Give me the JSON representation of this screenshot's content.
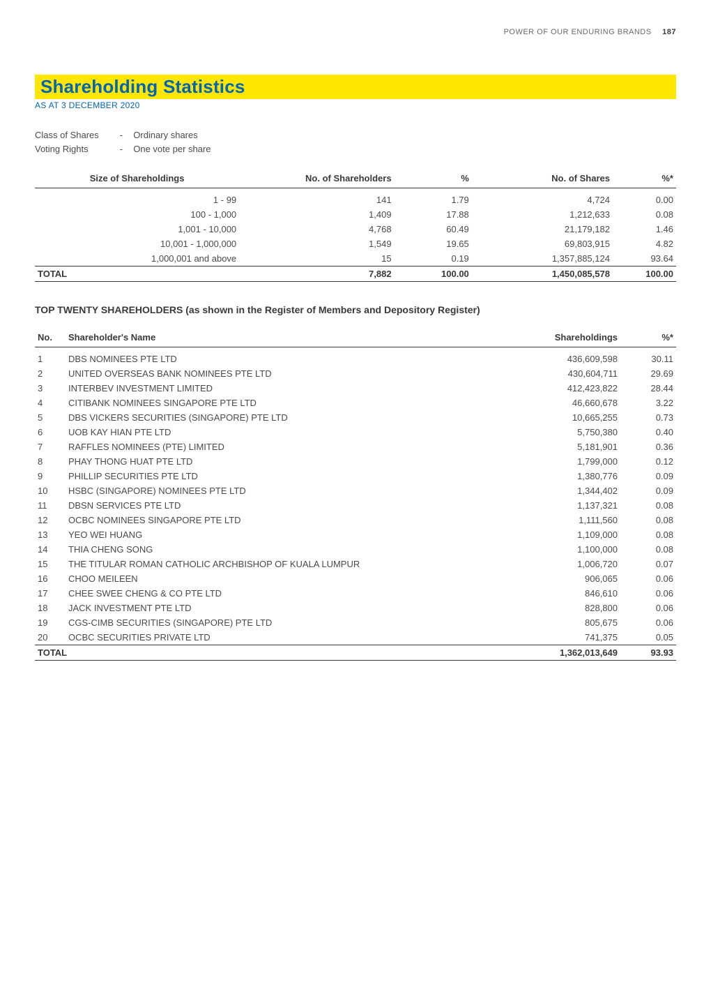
{
  "header": {
    "text": "POWER OF OUR ENDURING BRANDS",
    "page_number": "187"
  },
  "title": "Shareholding Statistics",
  "subtitle": "AS AT 3 DECEMBER 2020",
  "meta": {
    "class_of_shares_label": "Class of Shares",
    "class_of_shares_value": "Ordinary shares",
    "voting_rights_label": "Voting Rights",
    "voting_rights_value": "One vote per share",
    "dash": "-"
  },
  "table1": {
    "type": "table",
    "columns": [
      {
        "label": "Size of Shareholdings",
        "align": "center"
      },
      {
        "label": "No. of Shareholders",
        "align": "right"
      },
      {
        "label": "%",
        "align": "right"
      },
      {
        "label": "No. of Shares",
        "align": "right"
      },
      {
        "label": "%*",
        "align": "right"
      }
    ],
    "rows": [
      [
        "1 - 99",
        "141",
        "1.79",
        "4,724",
        "0.00"
      ],
      [
        "100 - 1,000",
        "1,409",
        "17.88",
        "1,212,633",
        "0.08"
      ],
      [
        "1,001 - 10,000",
        "4,768",
        "60.49",
        "21,179,182",
        "1.46"
      ],
      [
        "10,001 - 1,000,000",
        "1,549",
        "19.65",
        "69,803,915",
        "4.82"
      ],
      [
        "1,000,001 and above",
        "15",
        "0.19",
        "1,357,885,124",
        "93.64"
      ]
    ],
    "total_row": [
      "TOTAL",
      "7,882",
      "100.00",
      "1,450,085,578",
      "100.00"
    ]
  },
  "top20_heading": "TOP TWENTY SHAREHOLDERS (as shown in the Register of Members and Depository Register)",
  "table2": {
    "type": "table",
    "columns": [
      {
        "label": "No.",
        "align": "left"
      },
      {
        "label": "Shareholder's Name",
        "align": "left"
      },
      {
        "label": "Shareholdings",
        "align": "right"
      },
      {
        "label": "%*",
        "align": "right"
      }
    ],
    "rows": [
      [
        "1",
        "DBS NOMINEES PTE LTD",
        "436,609,598",
        "30.11"
      ],
      [
        "2",
        "UNITED OVERSEAS BANK NOMINEES PTE LTD",
        "430,604,711",
        "29.69"
      ],
      [
        "3",
        "INTERBEV INVESTMENT LIMITED",
        "412,423,822",
        "28.44"
      ],
      [
        "4",
        "CITIBANK NOMINEES SINGAPORE PTE LTD",
        "46,660,678",
        "3.22"
      ],
      [
        "5",
        "DBS VICKERS SECURITIES (SINGAPORE) PTE LTD",
        "10,665,255",
        "0.73"
      ],
      [
        "6",
        "UOB KAY HIAN PTE LTD",
        "5,750,380",
        "0.40"
      ],
      [
        "7",
        "RAFFLES NOMINEES (PTE) LIMITED",
        "5,181,901",
        "0.36"
      ],
      [
        "8",
        "PHAY THONG HUAT PTE LTD",
        "1,799,000",
        "0.12"
      ],
      [
        "9",
        "PHILLIP SECURITIES PTE LTD",
        "1,380,776",
        "0.09"
      ],
      [
        "10",
        "HSBC (SINGAPORE) NOMINEES PTE LTD",
        "1,344,402",
        "0.09"
      ],
      [
        "11",
        "DBSN SERVICES PTE LTD",
        "1,137,321",
        "0.08"
      ],
      [
        "12",
        "OCBC NOMINEES SINGAPORE PTE LTD",
        "1,111,560",
        "0.08"
      ],
      [
        "13",
        "YEO WEI HUANG",
        "1,109,000",
        "0.08"
      ],
      [
        "14",
        "THIA CHENG SONG",
        "1,100,000",
        "0.08"
      ],
      [
        "15",
        "THE TITULAR ROMAN CATHOLIC ARCHBISHOP OF KUALA LUMPUR",
        "1,006,720",
        "0.07"
      ],
      [
        "16",
        "CHOO MEILEEN",
        "906,065",
        "0.06"
      ],
      [
        "17",
        "CHEE SWEE CHENG & CO PTE LTD",
        "846,610",
        "0.06"
      ],
      [
        "18",
        "JACK INVESTMENT PTE LTD",
        "828,800",
        "0.06"
      ],
      [
        "19",
        "CGS-CIMB SECURITIES (SINGAPORE) PTE LTD",
        "805,675",
        "0.06"
      ],
      [
        "20",
        "OCBC SECURITIES PRIVATE LTD",
        "741,375",
        "0.05"
      ]
    ],
    "total_row": [
      "TOTAL",
      "",
      "1,362,013,649",
      "93.93"
    ]
  },
  "styling": {
    "title_bar_bg": "#ffe600",
    "title_text_color": "#0066b3",
    "subtitle_color": "#0066b3",
    "body_text_color": "#4a4a4a",
    "heading_color": "#3a3a3a",
    "border_color": "#3a3a3a",
    "background_color": "#ffffff",
    "title_fontsize": 26,
    "subtitle_fontsize": 12,
    "body_fontsize": 13,
    "header_fontsize": 11
  }
}
